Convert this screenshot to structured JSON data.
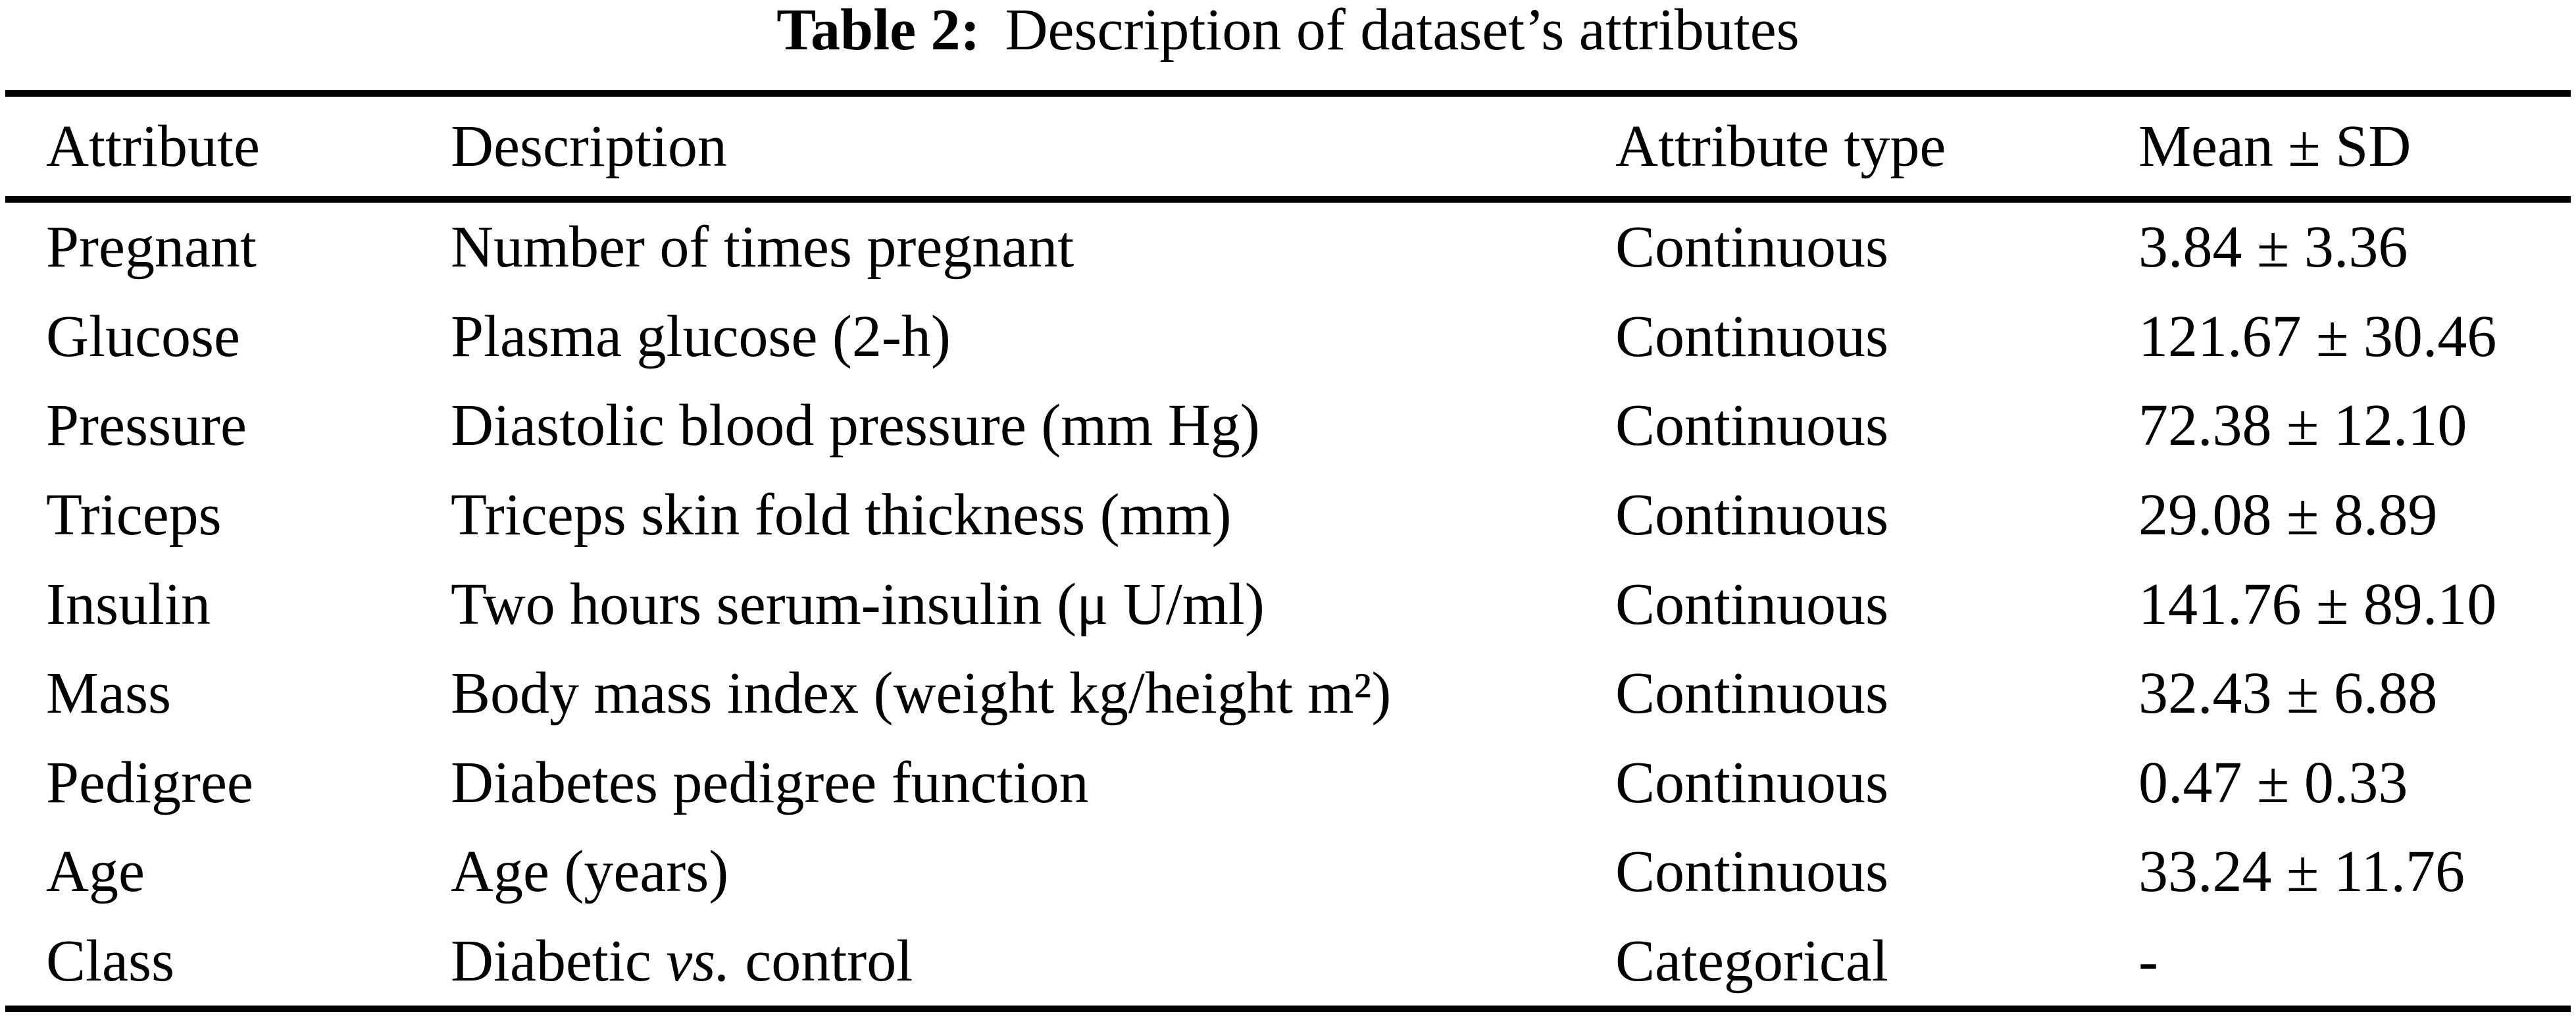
{
  "caption": {
    "label": "Table 2:",
    "text": "Description of dataset’s attributes"
  },
  "table": {
    "headers": [
      "Attribute",
      "Description",
      "Attribute type",
      "Mean ± SD"
    ],
    "rows": [
      {
        "attribute": "Pregnant",
        "desc_pre": "Number of times pregnant",
        "desc_italic": "",
        "desc_post": "",
        "type": "Continuous",
        "mean_sd": "3.84 ± 3.36"
      },
      {
        "attribute": "Glucose",
        "desc_pre": "Plasma glucose (2-h)",
        "desc_italic": "",
        "desc_post": "",
        "type": "Continuous",
        "mean_sd": "121.67 ± 30.46"
      },
      {
        "attribute": "Pressure",
        "desc_pre": "Diastolic blood pressure (mm Hg)",
        "desc_italic": "",
        "desc_post": "",
        "type": "Continuous",
        "mean_sd": "72.38 ± 12.10"
      },
      {
        "attribute": "Triceps",
        "desc_pre": "Triceps skin fold thickness (mm)",
        "desc_italic": "",
        "desc_post": "",
        "type": "Continuous",
        "mean_sd": "29.08 ± 8.89"
      },
      {
        "attribute": "Insulin",
        "desc_pre": "Two hours serum-insulin (μ U/ml)",
        "desc_italic": "",
        "desc_post": "",
        "type": "Continuous",
        "mean_sd": "141.76 ± 89.10"
      },
      {
        "attribute": "Mass",
        "desc_pre": "Body mass index (weight kg/height m²)",
        "desc_italic": "",
        "desc_post": "",
        "type": "Continuous",
        "mean_sd": "32.43 ± 6.88"
      },
      {
        "attribute": "Pedigree",
        "desc_pre": "Diabetes pedigree function",
        "desc_italic": "",
        "desc_post": "",
        "type": "Continuous",
        "mean_sd": "0.47 ± 0.33"
      },
      {
        "attribute": "Age",
        "desc_pre": "Age (years)",
        "desc_italic": "",
        "desc_post": "",
        "type": "Continuous",
        "mean_sd": "33.24 ± 11.76"
      },
      {
        "attribute": "Class",
        "desc_pre": "Diabetic ",
        "desc_italic": "vs.",
        "desc_post": " control",
        "type": "Categorical",
        "mean_sd": "-"
      }
    ],
    "colors": {
      "text": "#000000",
      "background": "#ffffff",
      "rule": "#000000"
    }
  }
}
